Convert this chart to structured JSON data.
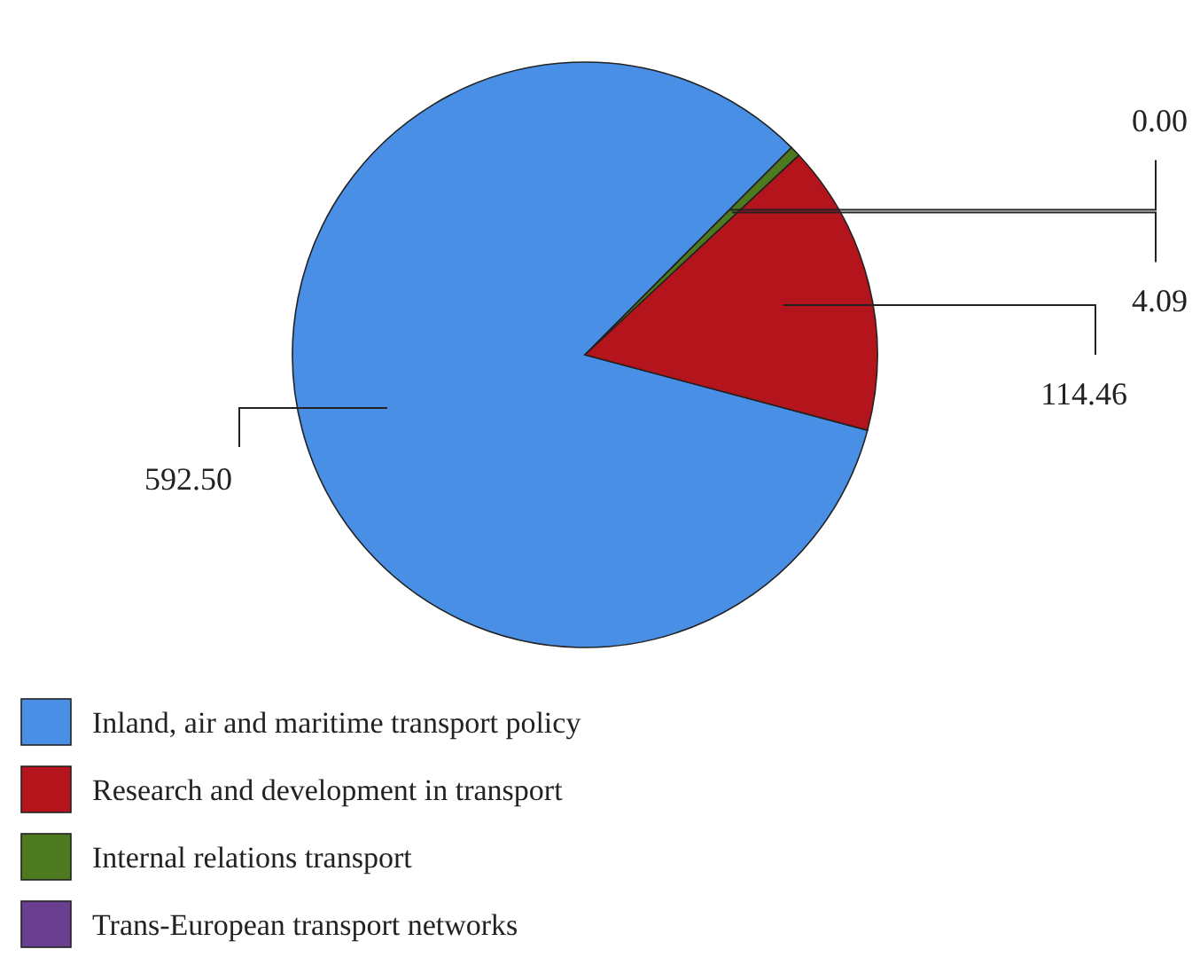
{
  "chart_data": {
    "type": "pie",
    "categories": [
      "Inland, air and maritime transport policy",
      "Research and development in transport",
      "Internal relations transport",
      "Trans-European transport networks"
    ],
    "values": [
      592.5,
      114.46,
      4.09,
      0
    ],
    "value_labels": [
      "592.50",
      "114.46",
      "4.09",
      "0.00"
    ],
    "colors": [
      "#4a8fe6",
      "#b4141c",
      "#4d7a1e",
      "#6b3f8f"
    ],
    "legend": "bottom left"
  }
}
